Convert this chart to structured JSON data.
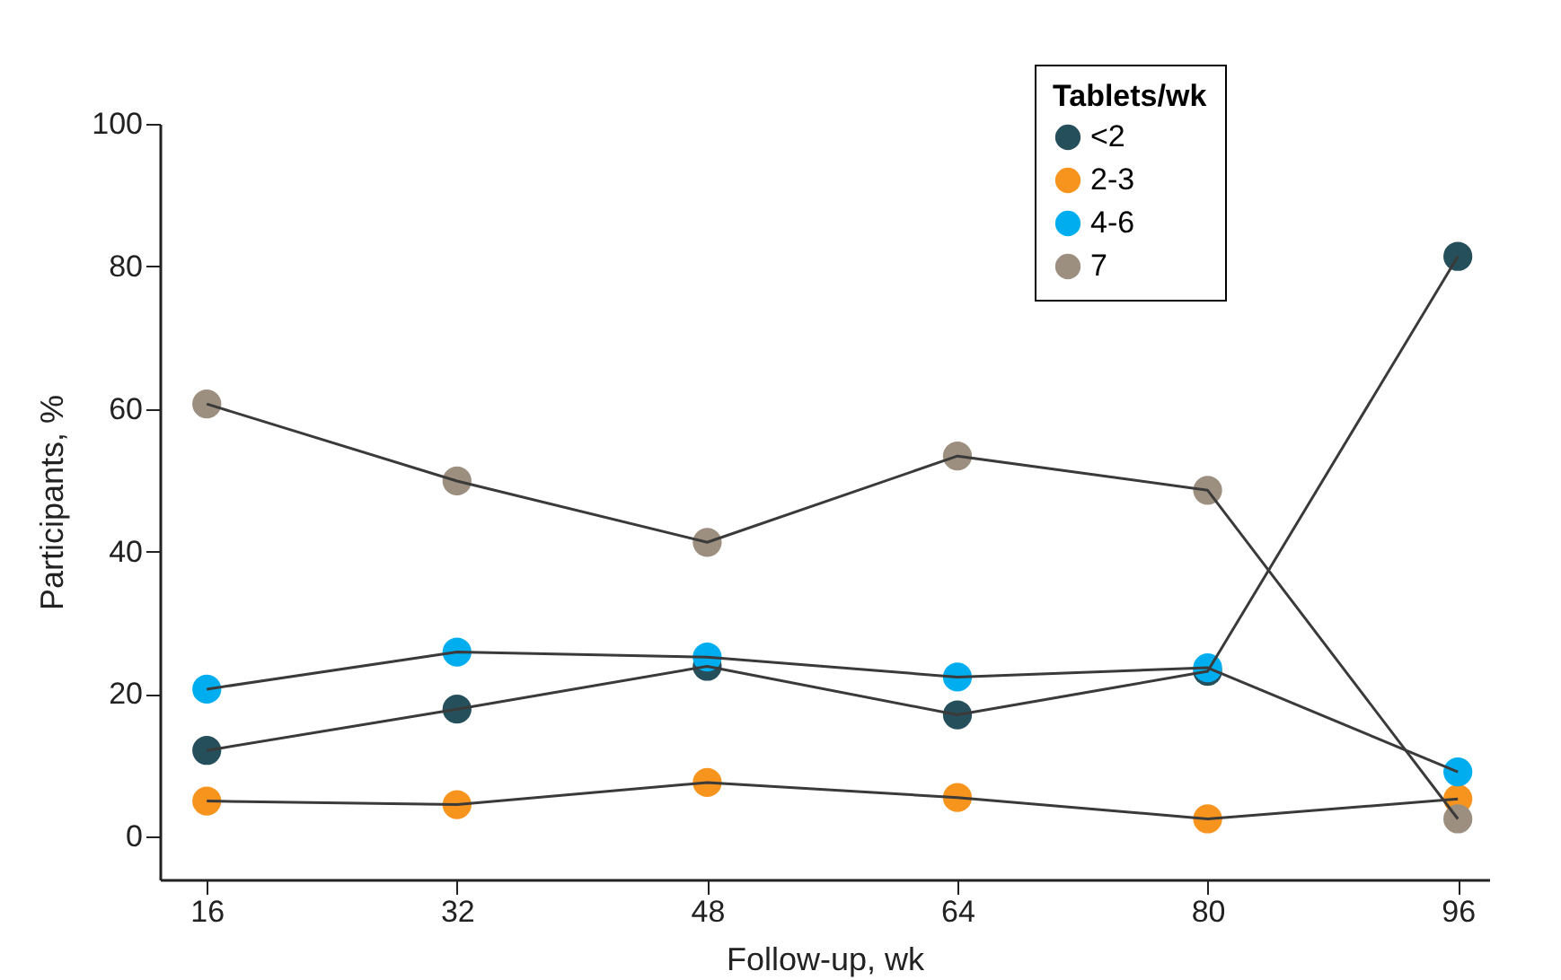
{
  "chart_data": {
    "type": "line",
    "xlabel": "Follow-up, wk",
    "ylabel": "Participants, %",
    "legend_title": "Tablets/wk",
    "x": [
      16,
      32,
      48,
      64,
      80,
      96
    ],
    "series": [
      {
        "name": "<2",
        "color": "#264f5c",
        "values": [
          12.1,
          17.9,
          23.9,
          17.1,
          23.2,
          81.4
        ]
      },
      {
        "name": "2-3",
        "color": "#f7941d",
        "values": [
          5.0,
          4.5,
          7.6,
          5.5,
          2.5,
          5.3
        ]
      },
      {
        "name": "4-6",
        "color": "#00aeef",
        "values": [
          20.7,
          25.9,
          25.2,
          22.4,
          23.7,
          9.1
        ]
      },
      {
        "name": "7",
        "color": "#9c8f80",
        "values": [
          60.7,
          49.9,
          41.3,
          53.4,
          48.6,
          2.5
        ]
      }
    ],
    "xlim": [
      13,
      98
    ],
    "xticks": [
      16,
      32,
      48,
      64,
      80,
      96
    ],
    "ylim": [
      -6,
      100
    ],
    "yticks": [
      0,
      20,
      40,
      60,
      80,
      100
    ],
    "grid": false,
    "legend": "top right",
    "marker": "circle",
    "line_style": "solid"
  }
}
